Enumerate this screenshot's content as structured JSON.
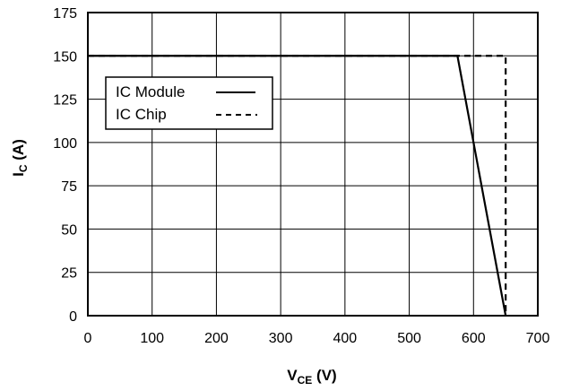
{
  "chart_data": {
    "type": "line",
    "xlabel": {
      "main": "V",
      "sub": "CE",
      "unit": " (V)"
    },
    "ylabel": {
      "main": "I",
      "sub": "C",
      "unit": " (A)"
    },
    "xlim": [
      0,
      700
    ],
    "ylim": [
      0,
      175
    ],
    "xticks": [
      0,
      100,
      200,
      300,
      400,
      500,
      600,
      700
    ],
    "yticks": [
      0,
      25,
      50,
      75,
      100,
      125,
      150,
      175
    ],
    "grid": true,
    "legend_position": "upper-left",
    "series": [
      {
        "name": "IC Module",
        "style": "solid",
        "color": "#000000",
        "x": [
          0,
          575,
          650
        ],
        "y": [
          150,
          150,
          0
        ]
      },
      {
        "name": "IC Chip",
        "style": "dashed",
        "color": "#000000",
        "x": [
          0,
          650,
          650
        ],
        "y": [
          150,
          150,
          0
        ]
      }
    ]
  }
}
